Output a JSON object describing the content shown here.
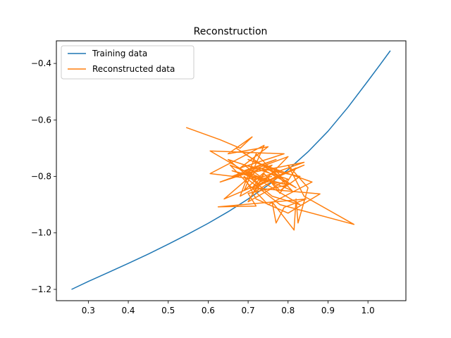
{
  "chart_data": {
    "type": "line",
    "title": "Reconstruction",
    "xlabel": "",
    "ylabel": "",
    "xlim": [
      0.22,
      1.095
    ],
    "ylim": [
      -1.24,
      -0.32
    ],
    "xticks": [
      0.3,
      0.4,
      0.5,
      0.6,
      0.7,
      0.8,
      0.9,
      1.0
    ],
    "xtick_labels": [
      "0.3",
      "0.4",
      "0.5",
      "0.6",
      "0.7",
      "0.8",
      "0.9",
      "1.0"
    ],
    "yticks": [
      -1.2,
      -1.0,
      -0.8,
      -0.6,
      -0.4
    ],
    "ytick_labels": [
      "−1.2",
      "−1.0",
      "−0.8",
      "−0.6",
      "−0.4"
    ],
    "grid": false,
    "legend": {
      "position": "top-left"
    },
    "series": [
      {
        "name": "Training data",
        "color": "#1f77b4",
        "x": [
          0.258,
          0.3,
          0.35,
          0.4,
          0.45,
          0.5,
          0.55,
          0.6,
          0.65,
          0.7,
          0.75,
          0.8,
          0.85,
          0.9,
          0.95,
          1.0,
          1.03,
          1.056
        ],
        "y": [
          -1.2,
          -1.172,
          -1.14,
          -1.108,
          -1.075,
          -1.04,
          -1.004,
          -0.966,
          -0.925,
          -0.88,
          -0.831,
          -0.776,
          -0.713,
          -0.64,
          -0.555,
          -0.462,
          -0.405,
          -0.355
        ]
      },
      {
        "name": "Reconstructed data",
        "color": "#ff7f0e",
        "x": [
          0.545,
          0.63,
          0.68,
          0.71,
          0.65,
          0.75,
          0.68,
          0.79,
          0.605,
          0.69,
          0.77,
          0.66,
          0.84,
          0.72,
          0.605,
          0.74,
          0.69,
          0.76,
          0.63,
          0.8,
          0.71,
          0.78,
          0.67,
          0.82,
          0.73,
          0.64,
          0.79,
          0.7,
          0.86,
          0.75,
          0.655,
          0.81,
          0.72,
          0.68,
          0.77,
          0.84,
          0.73,
          0.69,
          0.83,
          0.76,
          0.65,
          0.8,
          0.7,
          0.74,
          0.78,
          0.82,
          0.71,
          0.88,
          0.8,
          0.72,
          0.69,
          0.78,
          0.965,
          0.84,
          0.8,
          0.85,
          0.825,
          0.82,
          0.815,
          0.76,
          0.77,
          0.79,
          0.845,
          0.625,
          0.72,
          0.7,
          0.8,
          0.66,
          0.75,
          0.69,
          0.83,
          0.78,
          0.74,
          0.71,
          0.77,
          0.8,
          0.73,
          0.76
        ],
        "y": [
          -0.627,
          -0.67,
          -0.7,
          -0.66,
          -0.72,
          -0.695,
          -0.77,
          -0.72,
          -0.71,
          -0.78,
          -0.74,
          -0.8,
          -0.75,
          -0.81,
          -0.79,
          -0.69,
          -0.85,
          -0.76,
          -0.82,
          -0.73,
          -0.86,
          -0.8,
          -0.7,
          -0.84,
          -0.77,
          -0.88,
          -0.79,
          -0.74,
          -0.82,
          -0.9,
          -0.76,
          -0.85,
          -0.72,
          -0.87,
          -0.8,
          -0.76,
          -0.83,
          -0.78,
          -0.9,
          -0.87,
          -0.74,
          -0.81,
          -0.89,
          -0.79,
          -0.86,
          -0.77,
          -0.84,
          -0.862,
          -0.93,
          -0.88,
          -0.8,
          -0.9,
          -0.97,
          -0.87,
          -0.76,
          -0.84,
          -0.965,
          -0.88,
          -0.99,
          -0.89,
          -0.965,
          -0.91,
          -0.88,
          -0.908,
          -0.905,
          -0.86,
          -0.83,
          -0.78,
          -0.82,
          -0.76,
          -0.8,
          -0.85,
          -0.79,
          -0.84,
          -0.78,
          -0.83,
          -0.81,
          -0.8
        ]
      }
    ]
  }
}
